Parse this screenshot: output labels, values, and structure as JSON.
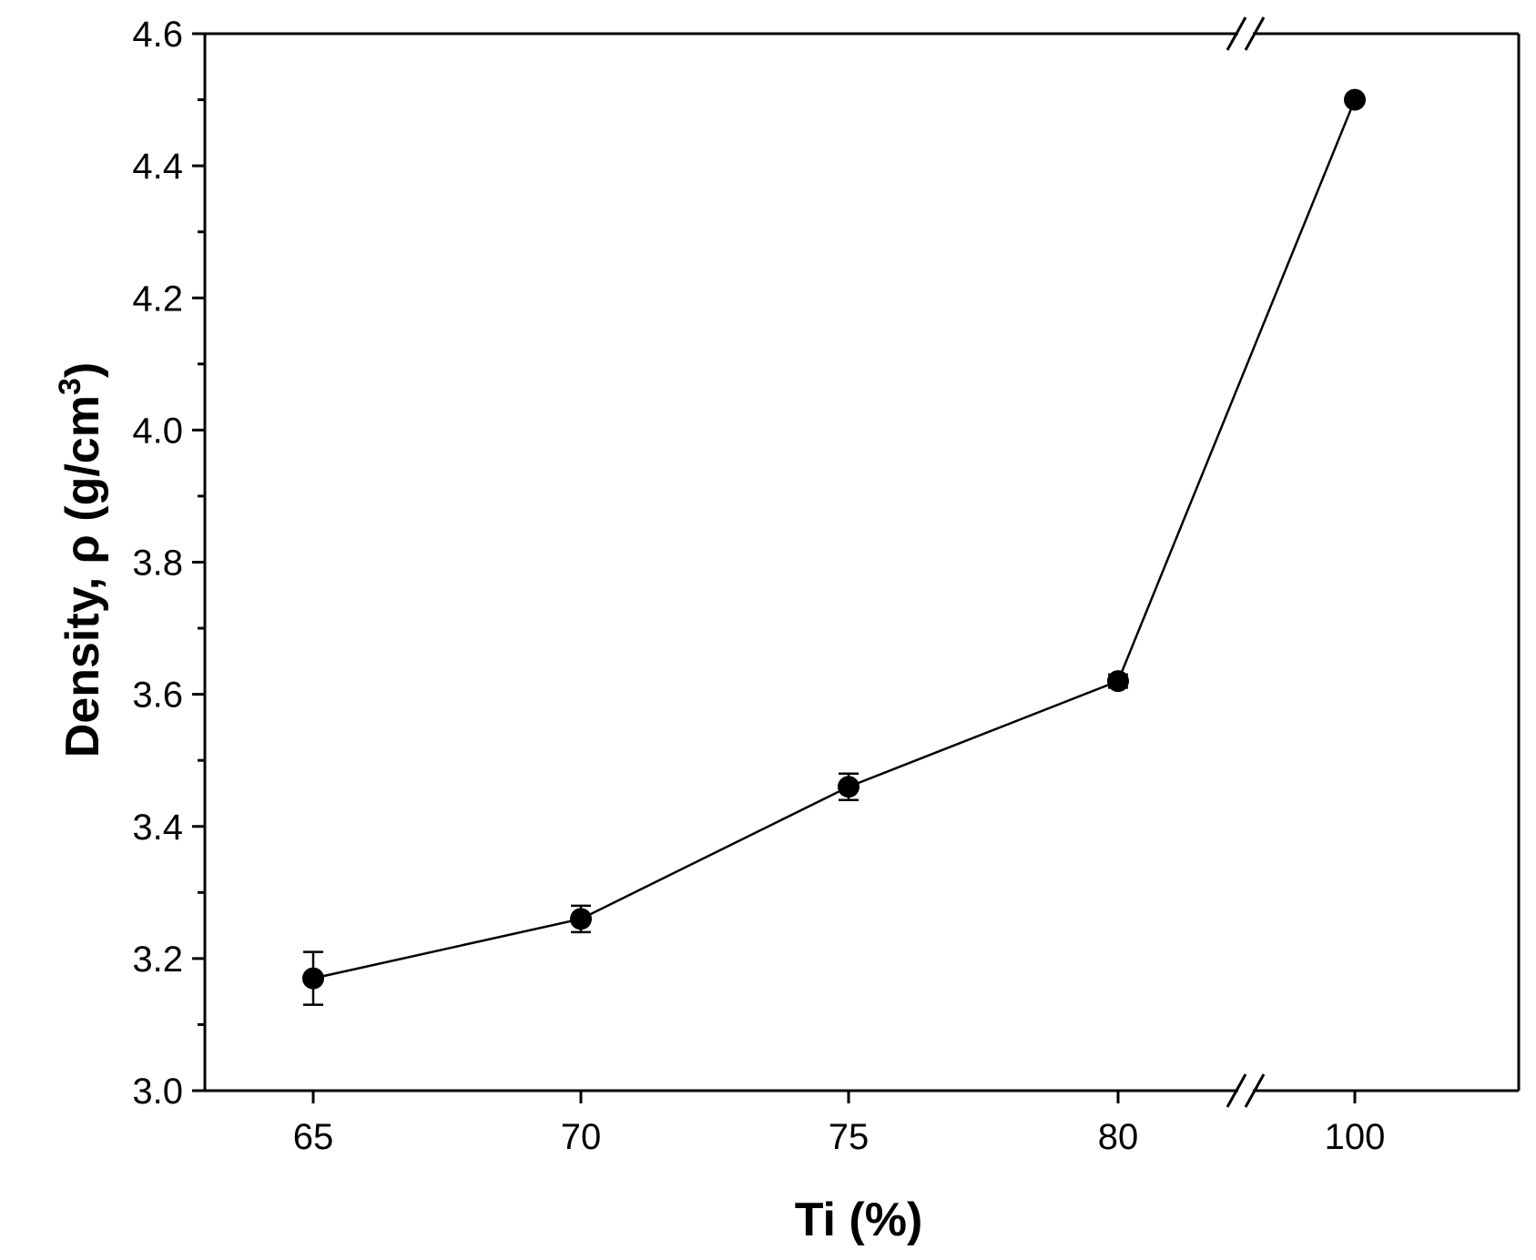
{
  "chart_data": {
    "type": "scatter",
    "title": "",
    "xlabel": "Ti (%)",
    "ylabel": "Density, ρ (g/cm",
    "ylabel_superscript": "3",
    "ylabel_close": ")",
    "x_axis_break": "80 // 100",
    "ylim": [
      3.0,
      4.6
    ],
    "y_major_ticks": [
      3.0,
      3.2,
      3.4,
      3.6,
      3.8,
      4.0,
      4.2,
      4.4,
      4.6
    ],
    "y_tick_labels": [
      "3.0",
      "3.2",
      "3.4",
      "3.6",
      "3.8",
      "4.0",
      "4.2",
      "4.4",
      "4.6"
    ],
    "x_tick_labels": [
      "65",
      "70",
      "75",
      "80",
      "100"
    ],
    "grid": false,
    "legend": "none",
    "series": [
      {
        "x": [
          65,
          70,
          75,
          80,
          100
        ],
        "y": [
          3.17,
          3.26,
          3.46,
          3.62,
          4.5
        ],
        "yerr": [
          0.04,
          0.02,
          0.02,
          0.01,
          0.0
        ],
        "marker": "filled-circle",
        "line": "solid",
        "color": "#000000"
      }
    ]
  }
}
